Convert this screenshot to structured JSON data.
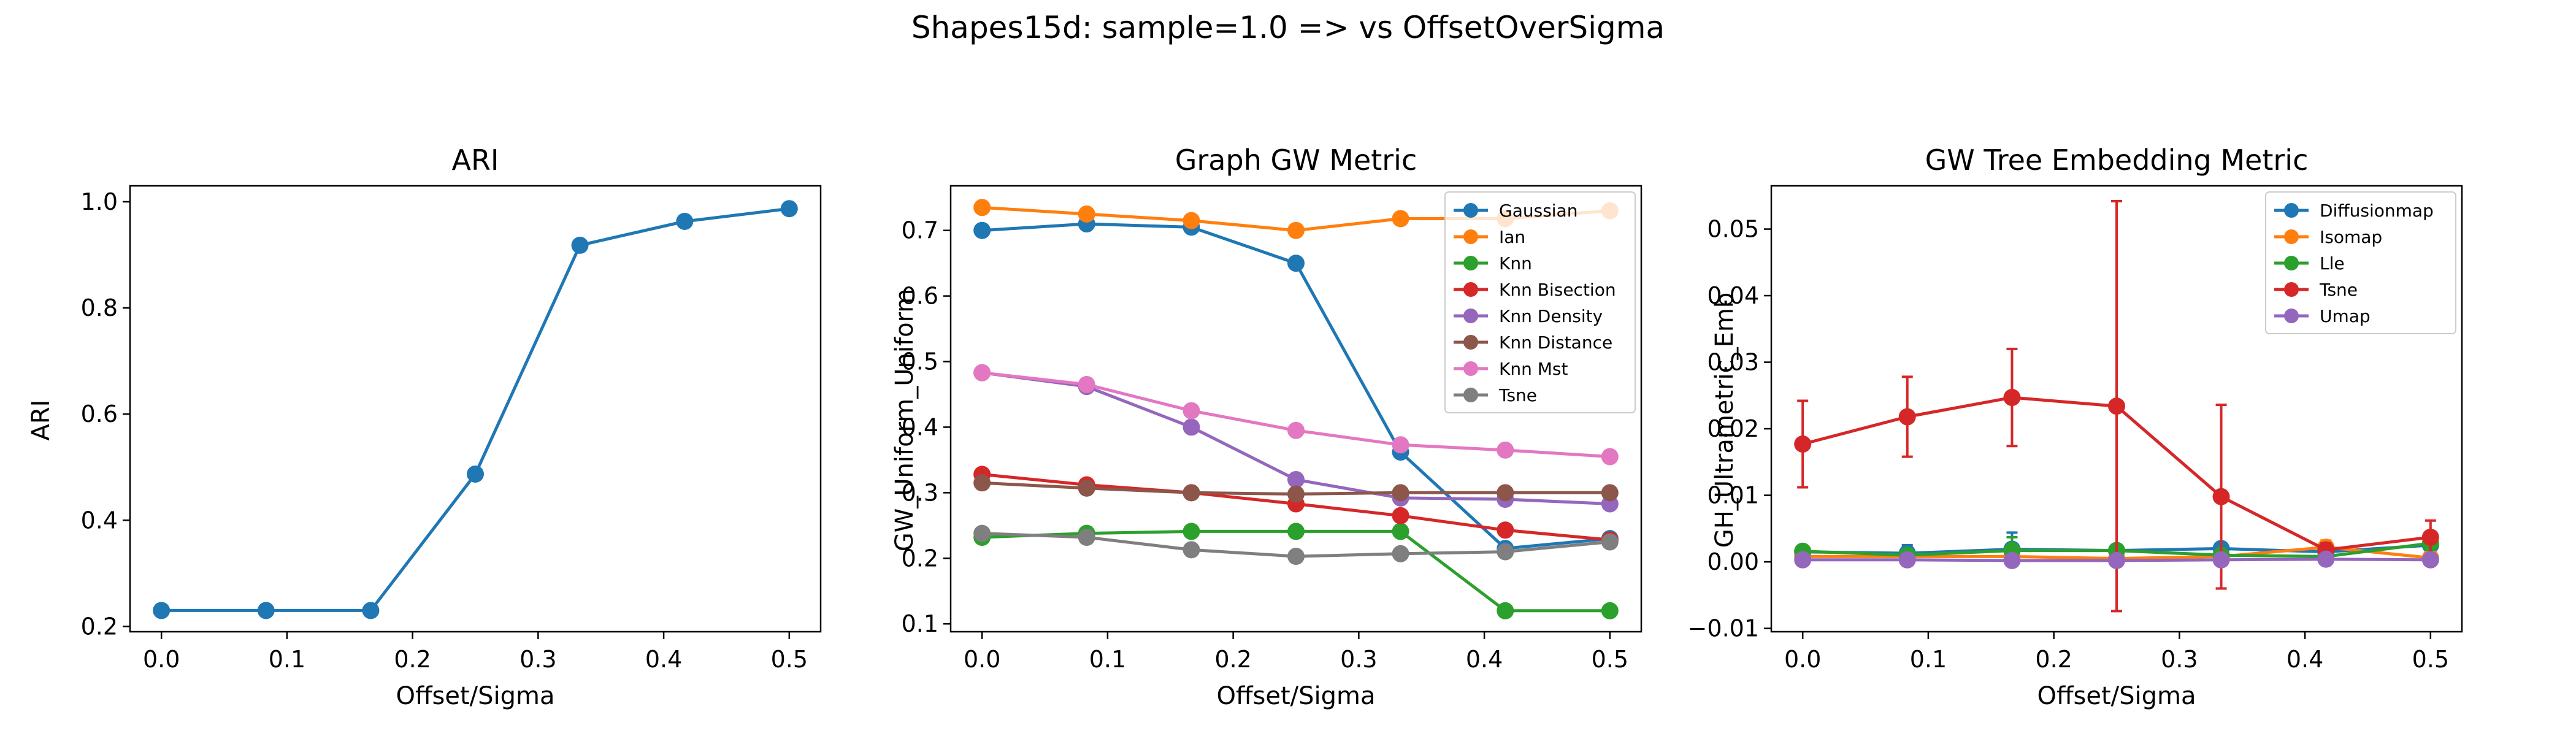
{
  "figure": {
    "suptitle": "Shapes15d: sample=1.0 => vs OffsetOverSigma"
  },
  "chart_data": [
    {
      "type": "line",
      "title": "ARI",
      "xlabel": "Offset/Sigma",
      "ylabel": "ARI",
      "xlim": [
        -0.025,
        0.525
      ],
      "ylim": [
        0.19,
        1.03
      ],
      "xticks": [
        0.0,
        0.1,
        0.2,
        0.3,
        0.4,
        0.5
      ],
      "xtick_labels": [
        "0.0",
        "0.1",
        "0.2",
        "0.3",
        "0.4",
        "0.5"
      ],
      "yticks": [
        0.2,
        0.4,
        0.6,
        0.8,
        1.0
      ],
      "ytick_labels": [
        "0.2",
        "0.4",
        "0.6",
        "0.8",
        "1.0"
      ],
      "grid": false,
      "legend": null,
      "x": [
        0.0,
        0.0833,
        0.1667,
        0.25,
        0.3333,
        0.4167,
        0.5
      ],
      "series": [
        {
          "color": "#1f77b4",
          "values": [
            0.23,
            0.23,
            0.23,
            0.487,
            0.918,
            0.963,
            0.987
          ]
        }
      ]
    },
    {
      "type": "line",
      "title": "Graph GW Metric",
      "xlabel": "Offset/Sigma",
      "ylabel": "GW_Uniform_Uniform",
      "xlim": [
        -0.025,
        0.525
      ],
      "ylim": [
        0.088,
        0.768
      ],
      "xticks": [
        0.0,
        0.1,
        0.2,
        0.3,
        0.4,
        0.5
      ],
      "xtick_labels": [
        "0.0",
        "0.1",
        "0.2",
        "0.3",
        "0.4",
        "0.5"
      ],
      "yticks": [
        0.1,
        0.2,
        0.3,
        0.4,
        0.5,
        0.6,
        0.7
      ],
      "ytick_labels": [
        "0.1",
        "0.2",
        "0.3",
        "0.4",
        "0.5",
        "0.6",
        "0.7"
      ],
      "grid": false,
      "legend": "top-right",
      "x": [
        0.0,
        0.0833,
        0.1667,
        0.25,
        0.3333,
        0.4167,
        0.5
      ],
      "series": [
        {
          "name": "Gaussian",
          "color": "#1f77b4",
          "values": [
            0.7,
            0.71,
            0.705,
            0.65,
            0.362,
            0.215,
            0.23
          ]
        },
        {
          "name": "Ian",
          "color": "#ff7f0e",
          "values": [
            0.735,
            0.725,
            0.715,
            0.7,
            0.718,
            0.718,
            0.73
          ]
        },
        {
          "name": "Knn",
          "color": "#2ca02c",
          "values": [
            0.232,
            0.238,
            0.241,
            0.241,
            0.241,
            0.12,
            0.12
          ]
        },
        {
          "name": "Knn Bisection",
          "color": "#d62728",
          "values": [
            0.328,
            0.312,
            0.3,
            0.283,
            0.265,
            0.243,
            0.228
          ]
        },
        {
          "name": "Knn Density",
          "color": "#9467bd",
          "values": [
            0.483,
            0.462,
            0.4,
            0.32,
            0.292,
            0.29,
            0.283
          ]
        },
        {
          "name": "Knn Distance",
          "color": "#8c564b",
          "values": [
            0.315,
            0.307,
            0.3,
            0.298,
            0.3,
            0.3,
            0.3
          ]
        },
        {
          "name": "Knn Mst",
          "color": "#e377c2",
          "values": [
            0.483,
            0.465,
            0.425,
            0.395,
            0.373,
            0.365,
            0.355
          ]
        },
        {
          "name": "Tsne",
          "color": "#7f7f7f",
          "values": [
            0.238,
            0.232,
            0.213,
            0.203,
            0.207,
            0.21,
            0.225
          ]
        }
      ]
    },
    {
      "type": "line",
      "title": "GW Tree Embedding Metric",
      "xlabel": "Offset/Sigma",
      "ylabel": "GH_Ultrametric_Emb",
      "xlim": [
        -0.025,
        0.525
      ],
      "ylim": [
        -0.0105,
        0.0565
      ],
      "xticks": [
        0.0,
        0.1,
        0.2,
        0.3,
        0.4,
        0.5
      ],
      "xtick_labels": [
        "0.0",
        "0.1",
        "0.2",
        "0.3",
        "0.4",
        "0.5"
      ],
      "yticks": [
        -0.01,
        0.0,
        0.01,
        0.02,
        0.03,
        0.04,
        0.05
      ],
      "ytick_labels": [
        "−0.01",
        "0.00",
        "0.01",
        "0.02",
        "0.03",
        "0.04",
        "0.05"
      ],
      "grid": false,
      "legend": "top-right",
      "x": [
        0.0,
        0.0833,
        0.1667,
        0.25,
        0.3333,
        0.4167,
        0.5
      ],
      "series": [
        {
          "name": "Diffusionmap",
          "color": "#1f77b4",
          "values": [
            0.0015,
            0.0013,
            0.0019,
            0.0017,
            0.002,
            0.0015,
            0.0025
          ],
          "errors": [
            0.0005,
            0.0012,
            0.0025,
            0.0005,
            0.0005,
            0.0005,
            0.0012
          ]
        },
        {
          "name": "Isomap",
          "color": "#ff7f0e",
          "values": [
            0.0008,
            0.0008,
            0.0008,
            0.0005,
            0.0008,
            0.0022,
            0.0006
          ],
          "errors": [
            0.0003,
            0.0003,
            0.0003,
            0.0003,
            0.0003,
            0.001,
            0.0003
          ]
        },
        {
          "name": "Lle",
          "color": "#2ca02c",
          "values": [
            0.0016,
            0.001,
            0.0017,
            0.0017,
            0.001,
            0.0008,
            0.0028
          ],
          "errors": [
            0.0005,
            0.0005,
            0.002,
            0.0005,
            0.0005,
            0.0005,
            0.001
          ]
        },
        {
          "name": "Tsne",
          "color": "#d62728",
          "values": [
            0.0177,
            0.0218,
            0.0247,
            0.0234,
            0.0098,
            0.0018,
            0.0037
          ],
          "errors": [
            0.0065,
            0.006,
            0.0073,
            0.0308,
            0.0138,
            0.001,
            0.0025
          ]
        },
        {
          "name": "Umap",
          "color": "#9467bd",
          "values": [
            0.0003,
            0.0003,
            0.0002,
            0.0002,
            0.0003,
            0.0004,
            0.0003
          ],
          "errors": [
            0.0002,
            0.0002,
            0.0002,
            0.0002,
            0.0002,
            0.0002,
            0.0002
          ]
        }
      ]
    }
  ]
}
